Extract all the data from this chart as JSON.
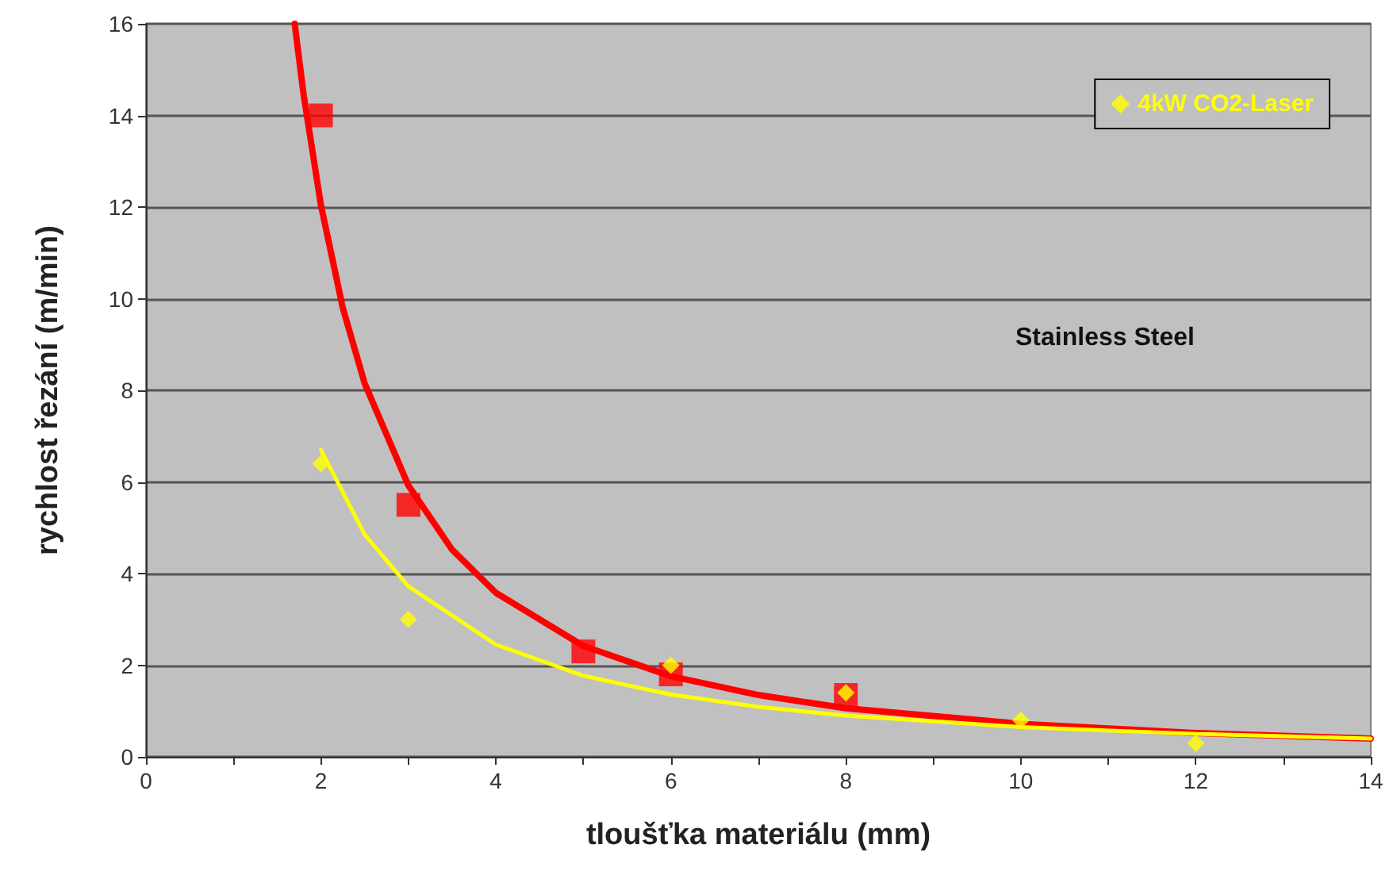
{
  "chart_data": {
    "type": "scatter",
    "xlabel": "tloušťka materiálu (mm)",
    "ylabel": "rychlost řezání (m/min)",
    "annotations": [
      "Stainless Steel"
    ],
    "series": [
      {
        "color": "#ff0000",
        "marker": "square",
        "x": [
          2,
          3,
          5,
          6,
          8
        ],
        "values": [
          14,
          5.5,
          2.3,
          1.8,
          1.35
        ]
      },
      {
        "name": "4kW CO2-Laser",
        "color": "#ffff00",
        "marker": "diamond",
        "x": [
          2,
          3,
          6,
          8,
          10,
          12
        ],
        "values": [
          6.4,
          3,
          2,
          1.4,
          0.8,
          0.3
        ]
      },
      {
        "type": "line",
        "color": "#ff0000",
        "x": [
          1.7,
          1.8,
          2,
          2.25,
          2.5,
          3,
          3.5,
          4,
          5,
          6,
          7,
          8,
          10,
          12,
          14
        ],
        "values": [
          16,
          14.48,
          12.04,
          9.8,
          8.15,
          5.92,
          4.52,
          3.58,
          2.42,
          1.76,
          1.35,
          1.06,
          0.72,
          0.52,
          0.4
        ]
      },
      {
        "type": "line",
        "color": "#ffff00",
        "x": [
          2,
          2.5,
          3,
          4,
          5,
          6,
          7,
          8,
          10,
          12,
          14
        ],
        "values": [
          6.7,
          4.85,
          3.72,
          2.45,
          1.77,
          1.36,
          1.09,
          0.9,
          0.65,
          0.5,
          0.4
        ]
      }
    ],
    "xlim": [
      0,
      14
    ],
    "xticks": [
      0,
      2,
      4,
      6,
      8,
      10,
      12,
      14
    ],
    "ylim": [
      0,
      16
    ],
    "yticks": [
      0,
      2,
      4,
      6,
      8,
      10,
      12,
      14,
      16
    ],
    "grid": "y",
    "legend": "top right",
    "marker": "none",
    "line_style": "solid"
  }
}
